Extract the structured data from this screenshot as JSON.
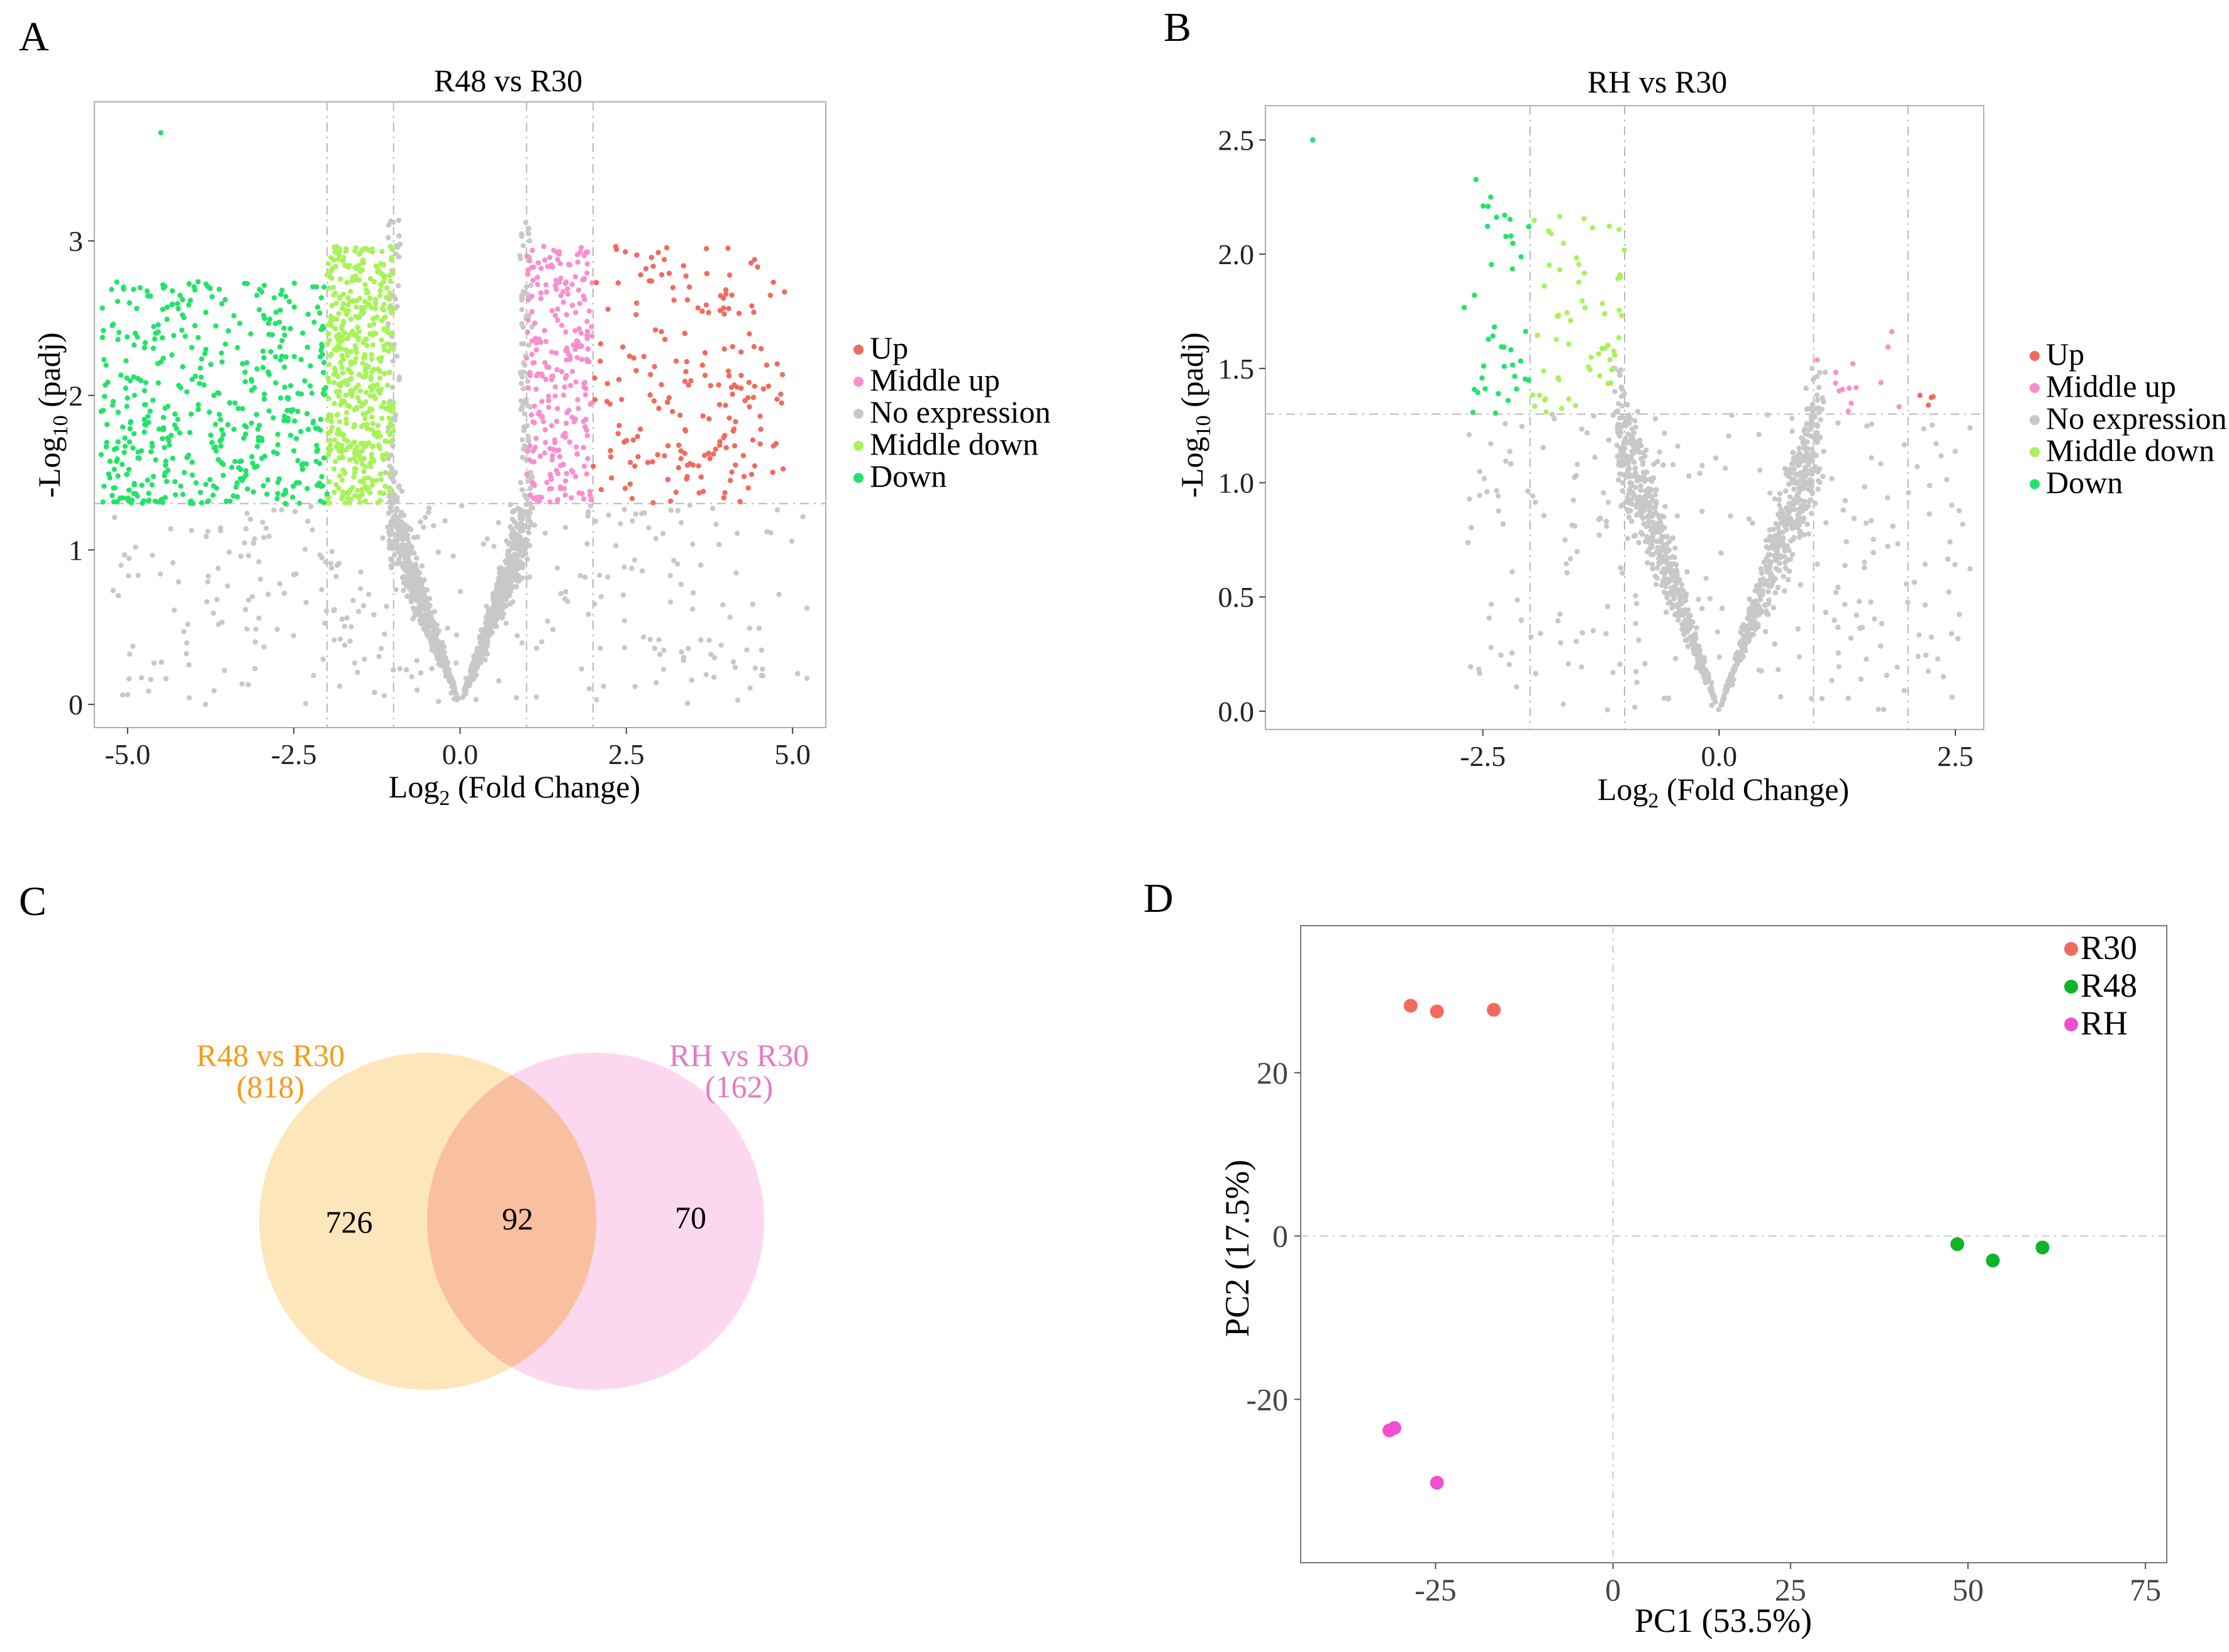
{
  "colors": {
    "up": "#f26a5e",
    "middle_up": "#f88fcf",
    "no_expression": "#c8c8c8",
    "middle_down": "#a8f25a",
    "down": "#23e36a",
    "venn_left": "#fde3b3",
    "venn_right": "#fbd4ee",
    "venn_overlap": "#f9c0a0",
    "venn_left_label": "#f59b1a",
    "venn_right_label": "#e67ac4",
    "r30": "#f26a5e",
    "r48": "#10b32a",
    "rh": "#f04fd0"
  },
  "chart_data": [
    {
      "panel": "A",
      "type": "scatter",
      "title": "R48 vs R30",
      "xlabel": "Log",
      "xlabel_sub": "2",
      "xlabel_rest": " (Fold Change)",
      "ylabel": "-Log",
      "ylabel_sub": "10",
      "ylabel_rest": " (padj)",
      "xlim": [
        -5.5,
        5.5
      ],
      "ylim": [
        -0.15,
        3.9
      ],
      "xticks": [
        -5.0,
        -2.5,
        0.0,
        2.5,
        5.0
      ],
      "xtick_labels": [
        "-5.0",
        "-2.5",
        "0.0",
        "2.5",
        "5.0"
      ],
      "yticks": [
        0,
        1,
        2,
        3
      ],
      "ytick_labels": [
        "0",
        "1",
        "2",
        "3"
      ],
      "vlines": [
        -2,
        -1,
        1,
        2
      ],
      "hline": 1.3,
      "legend": [
        "Up",
        "Middle up",
        "No expression",
        "Middle down",
        "Down"
      ],
      "counts": {
        "down": 470,
        "middle_down": 500,
        "middle_up": 260,
        "up": 200,
        "no_expression": 1700
      },
      "max_y": 3.7
    },
    {
      "panel": "B",
      "type": "scatter",
      "title": "RH vs R30",
      "xlabel": "Log",
      "xlabel_sub": "2",
      "xlabel_rest": " (Fold Change)",
      "ylabel": "-Log",
      "ylabel_sub": "10",
      "ylabel_rest": " (padj)",
      "xlim": [
        -4.8,
        2.8
      ],
      "ylim": [
        -0.08,
        2.65
      ],
      "xticks": [
        -2.5,
        0.0,
        2.5
      ],
      "xtick_labels": [
        "-2.5",
        "0.0",
        "2.5"
      ],
      "yticks": [
        0.0,
        0.5,
        1.0,
        1.5,
        2.0,
        2.5
      ],
      "ytick_labels": [
        "0.0",
        "0.5",
        "1.0",
        "1.5",
        "2.0",
        "2.5"
      ],
      "vlines": [
        -2,
        -1,
        1,
        2
      ],
      "hline": 1.3,
      "legend": [
        "Up",
        "Middle up",
        "No expression",
        "Middle down",
        "Down"
      ],
      "counts": {
        "down": 40,
        "middle_down": 60,
        "middle_up": 14,
        "up": 4,
        "no_expression": 2200
      },
      "max_y": 2.5
    },
    {
      "panel": "C",
      "type": "venn",
      "sets": [
        {
          "name": "R48 vs R30",
          "total": "(818)",
          "only": "726"
        },
        {
          "name": "RH vs R30",
          "total": "(162)",
          "only": "70"
        }
      ],
      "overlap": "92"
    },
    {
      "panel": "D",
      "type": "scatter",
      "xlabel": "PC1 (53.5%)",
      "ylabel": "PC2 (17.5%)",
      "xlim": [
        -44,
        78
      ],
      "ylim": [
        -40,
        38
      ],
      "xticks": [
        -25,
        0,
        25,
        50,
        75
      ],
      "xtick_labels": [
        "-25",
        "0",
        "25",
        "50",
        "75"
      ],
      "yticks": [
        -20,
        0,
        20
      ],
      "ytick_labels": [
        "-20",
        "0",
        "20"
      ],
      "legend": [
        "R30",
        "R48",
        "RH"
      ],
      "series": [
        {
          "name": "R30",
          "x": [
            -28.5,
            -24.8,
            -16.8
          ],
          "y": [
            28.2,
            27.5,
            27.7
          ]
        },
        {
          "name": "R48",
          "x": [
            48.5,
            53.5,
            60.5
          ],
          "y": [
            -1.0,
            -3.0,
            -1.4
          ]
        },
        {
          "name": "RH",
          "x": [
            -31.5,
            -30.8,
            -24.8
          ],
          "y": [
            -23.8,
            -23.5,
            -30.2
          ]
        }
      ]
    }
  ]
}
